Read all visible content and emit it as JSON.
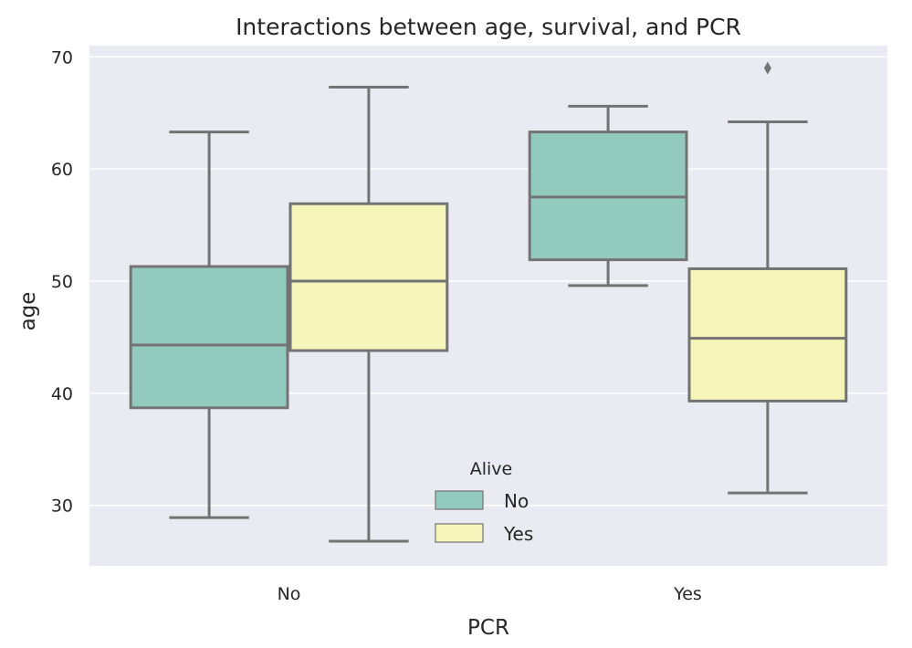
{
  "chart_data": {
    "type": "box",
    "title": "Interactions between age, survival, and PCR",
    "xlabel": "PCR",
    "ylabel": "age",
    "categories": [
      "No",
      "Yes"
    ],
    "ylim": [
      24.6,
      71
    ],
    "yticks": [
      30,
      40,
      50,
      60,
      70
    ],
    "grid": true,
    "legend": {
      "title": "Alive",
      "position": "lower-center",
      "entries": [
        "No",
        "Yes"
      ]
    },
    "series": [
      {
        "name": "No",
        "color": "#92cbbd",
        "boxes": [
          {
            "category": "No",
            "whisker_low": 28.9,
            "q1": 38.7,
            "median": 44.3,
            "q3": 51.3,
            "whisker_high": 63.3,
            "outliers": []
          },
          {
            "category": "Yes",
            "whisker_low": 49.6,
            "q1": 51.9,
            "median": 57.5,
            "q3": 63.3,
            "whisker_high": 65.6,
            "outliers": []
          }
        ]
      },
      {
        "name": "Yes",
        "color": "#f5f4b9",
        "boxes": [
          {
            "category": "No",
            "whisker_low": 26.8,
            "q1": 43.8,
            "median": 50.0,
            "q3": 56.9,
            "whisker_high": 67.3,
            "outliers": []
          },
          {
            "category": "Yes",
            "whisker_low": 31.1,
            "q1": 39.3,
            "median": 44.9,
            "q3": 51.1,
            "whisker_high": 64.2,
            "outliers": [
              69.0
            ]
          }
        ]
      }
    ],
    "colors": {
      "background": "#eaeaf2",
      "grid": "#ffffff",
      "box_edge": "#737373"
    }
  }
}
